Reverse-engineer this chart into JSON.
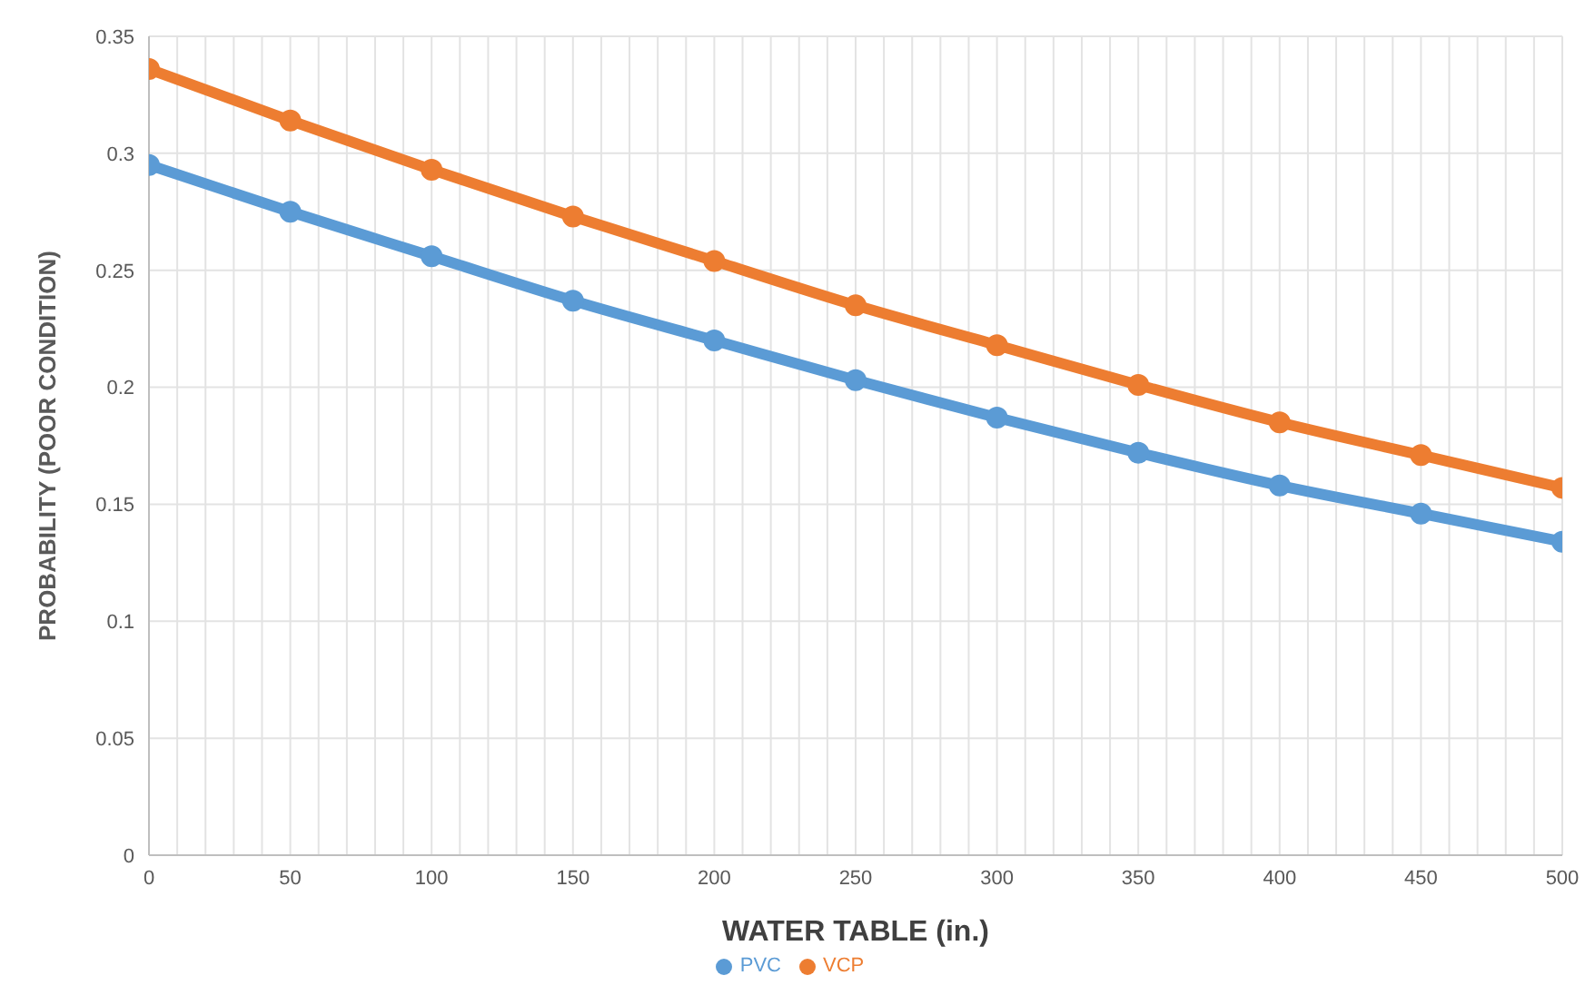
{
  "chart_data": {
    "type": "line",
    "xlabel": "WATER TABLE (in.)",
    "ylabel": "PROBABILITY (POOR CONDITION)",
    "x": [
      0,
      50,
      100,
      150,
      200,
      250,
      300,
      350,
      400,
      450,
      500
    ],
    "series": [
      {
        "name": "PVC",
        "color": "#5b9bd5",
        "values": [
          0.295,
          0.275,
          0.256,
          0.237,
          0.22,
          0.203,
          0.187,
          0.172,
          0.158,
          0.146,
          0.134
        ]
      },
      {
        "name": "VCP",
        "color": "#ed7d31",
        "values": [
          0.336,
          0.314,
          0.293,
          0.273,
          0.254,
          0.235,
          0.218,
          0.201,
          0.185,
          0.171,
          0.157
        ]
      }
    ],
    "xlim": [
      0,
      500
    ],
    "xticks": [
      0,
      {
        "value": 10,
        "label": null
      },
      {
        "value": 20,
        "label": null
      },
      {
        "value": 30,
        "label": null
      },
      {
        "value": 40,
        "label": null
      },
      50,
      {
        "value": 60,
        "label": null
      },
      {
        "value": 70,
        "label": null
      },
      {
        "value": 80,
        "label": null
      },
      {
        "value": 90,
        "label": null
      },
      100,
      {
        "value": 110,
        "label": null
      },
      {
        "value": 120,
        "label": null
      },
      {
        "value": 130,
        "label": null
      },
      {
        "value": 140,
        "label": null
      },
      150,
      {
        "value": 160,
        "label": null
      },
      {
        "value": 170,
        "label": null
      },
      {
        "value": 180,
        "label": null
      },
      {
        "value": 190,
        "label": null
      },
      200,
      {
        "value": 210,
        "label": null
      },
      {
        "value": 220,
        "label": null
      },
      {
        "value": 230,
        "label": null
      },
      {
        "value": 240,
        "label": null
      },
      250,
      {
        "value": 260,
        "label": null
      },
      {
        "value": 270,
        "label": null
      },
      {
        "value": 280,
        "label": null
      },
      {
        "value": 290,
        "label": null
      },
      300,
      {
        "value": 310,
        "label": null
      },
      {
        "value": 320,
        "label": null
      },
      {
        "value": 330,
        "label": null
      },
      {
        "value": 340,
        "label": null
      },
      350,
      {
        "value": 360,
        "label": null
      },
      {
        "value": 370,
        "label": null
      },
      {
        "value": 380,
        "label": null
      },
      {
        "value": 390,
        "label": null
      },
      400,
      {
        "value": 410,
        "label": null
      },
      {
        "value": 420,
        "label": null
      },
      {
        "value": 430,
        "label": null
      },
      {
        "value": 440,
        "label": null
      },
      450,
      {
        "value": 460,
        "label": null
      },
      {
        "value": 470,
        "label": null
      },
      {
        "value": 480,
        "label": null
      },
      {
        "value": 490,
        "label": null
      },
      500
    ],
    "ylim": [
      0,
      0.35
    ],
    "yticks": [
      0,
      0.05,
      0.1,
      0.15,
      0.2,
      0.25,
      0.3,
      0.35
    ],
    "grid": true,
    "legend": "bottom",
    "marker": "circle",
    "line_style": "solid"
  }
}
